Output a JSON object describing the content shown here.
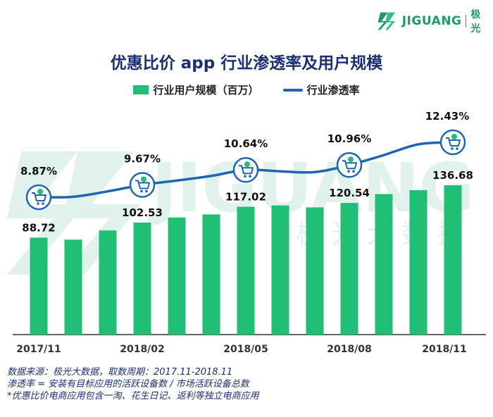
{
  "brand": {
    "name": "JIGUANG",
    "name_cn": "极光",
    "color": "#1f9a69",
    "watermark": "JIGUANG",
    "watermark_cn": "极 光 大 数 据"
  },
  "chart_data": {
    "type": "bar+line",
    "title": "优惠比价 app 行业渗透率及用户规模",
    "categories": [
      "2017/11",
      "2017/12",
      "2018/01",
      "2018/02",
      "2018/03",
      "2018/04",
      "2018/05",
      "2018/06",
      "2018/07",
      "2018/08",
      "2018/09",
      "2018/10",
      "2018/11"
    ],
    "x_tick_labels": [
      "2017/11",
      "",
      "",
      "2018/02",
      "",
      "",
      "2018/05",
      "",
      "",
      "2018/08",
      "",
      "",
      "2018/11"
    ],
    "series": [
      {
        "name": "行业用户规模（百万）",
        "type": "bar",
        "color": "#1fbf76",
        "values": [
          88.72,
          86.9,
          95.3,
          102.53,
          107.2,
          110.0,
          117.02,
          118.2,
          116.4,
          120.54,
          128.6,
          132.2,
          136.68
        ],
        "labels": [
          "88.72",
          "",
          "",
          "102.53",
          "",
          "",
          "117.02",
          "",
          "",
          "120.54",
          "",
          "",
          "136.68"
        ]
      },
      {
        "name": "行业渗透率",
        "type": "line",
        "color": "#1e66b2",
        "values": [
          8.87,
          8.9,
          9.25,
          9.67,
          9.95,
          10.25,
          10.64,
          10.55,
          10.5,
          10.96,
          11.6,
          12.3,
          12.43
        ],
        "labels": [
          "8.87%",
          "",
          "",
          "9.67%",
          "",
          "",
          "10.64%",
          "",
          "",
          "10.96%",
          "",
          "",
          "12.43%"
        ],
        "markers_at": [
          0,
          3,
          6,
          9,
          12
        ]
      }
    ],
    "legend_position": "top-center",
    "grid": false
  },
  "notes": [
    "数据来源：极光大数据，取数周期：2017.11-2018.11",
    "渗透率 = 安装有目标应用的活跃设备数 / 市场活跃设备总数",
    "*优惠比价电商应用包含一淘、花生日记、返利等独立电商应用"
  ]
}
